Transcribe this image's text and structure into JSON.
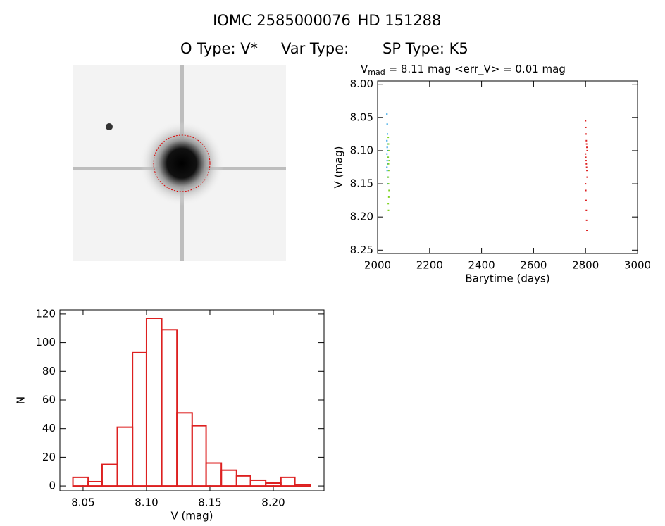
{
  "header": {
    "id": "IOMC 2585000076",
    "hd": "HD 151288",
    "otype": "O Type: V*",
    "vartype": "Var Type:",
    "sptype": "SP Type: K5"
  },
  "chart_data": [
    {
      "type": "scatter",
      "title": {
        "main": "V",
        "sub": "mad",
        "rest": " = 8.11 mag <err_V> = 0.01 mag"
      },
      "x_label": "Barytime (days)",
      "y_label": "V (mag)",
      "xlim": [
        2000,
        3000
      ],
      "xticks": [
        2000,
        2200,
        2400,
        2600,
        2800,
        3000
      ],
      "ylim": [
        8.255,
        7.995
      ],
      "yticks": [
        {
          "value": 8.0,
          "label": "8.00"
        },
        {
          "value": 8.05,
          "label": "8.05"
        },
        {
          "value": 8.1,
          "label": "8.10"
        },
        {
          "value": 8.15,
          "label": "8.15"
        },
        {
          "value": 8.2,
          "label": "8.20"
        },
        {
          "value": 8.25,
          "label": "8.25"
        }
      ],
      "series": [
        {
          "color": "#1e9be0",
          "x": [
            2036,
            2037,
            2038,
            2036,
            2039,
            2037,
            2038,
            2036,
            2039,
            2037,
            2038,
            2036,
            2037,
            2039,
            2038
          ],
          "values": [
            8.045,
            8.06,
            8.075,
            8.085,
            8.09,
            8.095,
            8.1,
            8.105,
            8.11,
            8.115,
            8.12,
            8.125,
            8.13,
            8.14,
            8.15
          ]
        },
        {
          "color": "#7ed321",
          "x": [
            2041,
            2042,
            2043,
            2041,
            2044,
            2042,
            2043,
            2041,
            2042,
            2044,
            2043,
            2041,
            2042
          ],
          "values": [
            8.08,
            8.09,
            8.1,
            8.11,
            8.115,
            8.12,
            8.13,
            8.14,
            8.15,
            8.16,
            8.17,
            8.18,
            8.19
          ]
        },
        {
          "color": "#dd2020",
          "x": [
            2800,
            2801,
            2802,
            2803,
            2804,
            2805,
            2806,
            2800,
            2801,
            2802,
            2803,
            2804,
            2805,
            2806,
            2800,
            2801,
            2802,
            2803,
            2804,
            2805
          ],
          "values": [
            8.055,
            8.065,
            8.075,
            8.085,
            8.09,
            8.095,
            8.1,
            8.105,
            8.11,
            8.115,
            8.12,
            8.125,
            8.13,
            8.14,
            8.15,
            8.16,
            8.175,
            8.19,
            8.205,
            8.22
          ]
        }
      ]
    },
    {
      "type": "histogram",
      "x_label": "V (mag)",
      "y_label": "N",
      "color": "#dd2020",
      "bins": [
        8.042,
        8.054,
        8.065,
        8.077,
        8.089,
        8.1,
        8.112,
        8.124,
        8.136,
        8.147,
        8.159,
        8.171,
        8.182,
        8.194,
        8.206,
        8.217,
        8.229
      ],
      "counts": [
        6,
        3,
        15,
        41,
        93,
        117,
        109,
        51,
        42,
        16,
        11,
        7,
        4,
        2,
        6,
        1
      ],
      "xlim": [
        8.0317,
        8.24
      ],
      "xticks": [
        8.05,
        {
          "value": 8.1,
          "label": "8.10"
        },
        8.15,
        {
          "value": 8.2,
          "label": "8.20"
        }
      ],
      "ylim": [
        -3.4,
        122.9
      ],
      "yticks": [
        0,
        20,
        40,
        60,
        80,
        100,
        120
      ]
    }
  ]
}
